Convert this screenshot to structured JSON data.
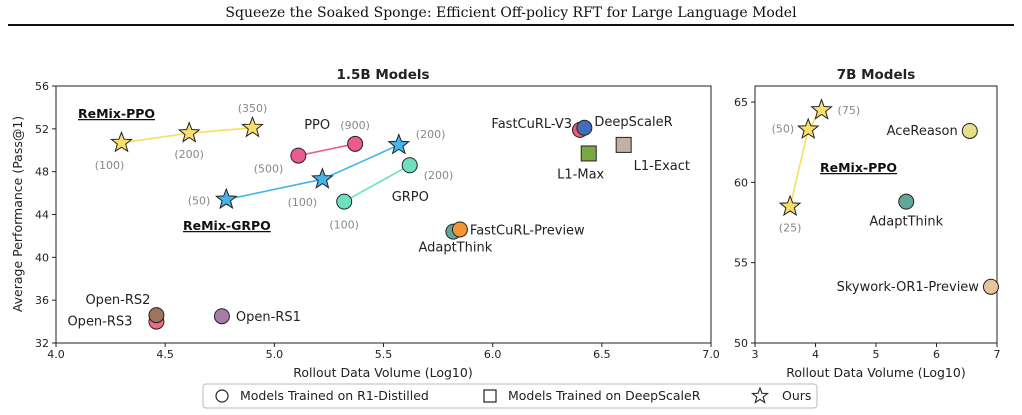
{
  "header": {
    "title": "Squeeze the Soaked Sponge: Efficient Off-policy RFT for Large Language Model"
  },
  "chart_data": [
    {
      "type": "scatter",
      "title": "1.5B Models",
      "xlabel": "Rollout Data Volume (Log10)",
      "ylabel": "Average Performance (Pass@1)",
      "xlim": [
        4.0,
        7.0
      ],
      "ylim": [
        32,
        56
      ],
      "xticks": [
        "4.0",
        "4.5",
        "5.0",
        "5.5",
        "6.0",
        "6.5",
        "7.0"
      ],
      "yticks": [
        "32",
        "36",
        "40",
        "44",
        "48",
        "52",
        "56"
      ],
      "grid": false,
      "points": [
        {
          "label": "Open-RS3",
          "x": 4.46,
          "y": 34.0,
          "marker": "circle",
          "color": "#ee6b8a"
        },
        {
          "label": "Open-RS2",
          "x": 4.46,
          "y": 34.6,
          "marker": "circle",
          "color": "#a0745a"
        },
        {
          "label": "Open-RS1",
          "x": 4.76,
          "y": 34.5,
          "marker": "circle",
          "color": "#a87aa8"
        },
        {
          "label": "",
          "x": 5.11,
          "y": 49.5,
          "marker": "circle",
          "color": "#ec5b90",
          "annotation": "(500)"
        },
        {
          "label": "PPO",
          "x": 5.37,
          "y": 50.6,
          "marker": "circle",
          "color": "#ec5b90",
          "annotation": "(900)"
        },
        {
          "label": "",
          "x": 5.32,
          "y": 45.2,
          "marker": "circle",
          "color": "#6fe0bf",
          "annotation": "(100)"
        },
        {
          "label": "GRPO",
          "x": 5.62,
          "y": 48.6,
          "marker": "circle",
          "color": "#6fe0bf",
          "annotation": "(200)"
        },
        {
          "label": "AdaptThink",
          "x": 5.82,
          "y": 42.4,
          "marker": "circle",
          "color": "#62a898"
        },
        {
          "label": "FastCuRL-Preview",
          "x": 5.85,
          "y": 42.6,
          "marker": "circle",
          "color": "#f39534"
        },
        {
          "label": "FastCuRL-V3",
          "x": 6.4,
          "y": 51.9,
          "marker": "circle",
          "color": "#ee5a6e"
        },
        {
          "label": "DeepScaleR",
          "x": 6.42,
          "y": 52.1,
          "marker": "circle",
          "color": "#3f6fba"
        },
        {
          "label": "L1-Max",
          "x": 6.44,
          "y": 49.7,
          "marker": "square",
          "color": "#79a943"
        },
        {
          "label": "L1-Exact",
          "x": 6.6,
          "y": 50.5,
          "marker": "square",
          "color": "#c2b0a8"
        },
        {
          "label": "",
          "x": 4.3,
          "y": 50.7,
          "marker": "star",
          "color": "#f9de6a",
          "annotation": "(100)"
        },
        {
          "label": "",
          "x": 4.61,
          "y": 51.6,
          "marker": "star",
          "color": "#f9de6a",
          "annotation": "(200)"
        },
        {
          "label": "",
          "x": 4.9,
          "y": 52.1,
          "marker": "star",
          "color": "#f9de6a",
          "annotation": "(350)"
        },
        {
          "label": "",
          "x": 4.78,
          "y": 45.4,
          "marker": "star",
          "color": "#45b4ea",
          "annotation": "(50)"
        },
        {
          "label": "",
          "x": 5.22,
          "y": 47.3,
          "marker": "star",
          "color": "#45b4ea",
          "annotation": "(100)"
        },
        {
          "label": "",
          "x": 5.57,
          "y": 50.5,
          "marker": "star",
          "color": "#45b4ea",
          "annotation": "(200)"
        }
      ],
      "connections": [
        {
          "color": "#f7df5e",
          "points": [
            [
              4.3,
              50.7
            ],
            [
              4.61,
              51.6
            ],
            [
              4.9,
              52.1
            ]
          ]
        },
        {
          "color": "#45b4ea",
          "points": [
            [
              4.78,
              45.4
            ],
            [
              5.22,
              47.3
            ],
            [
              5.57,
              50.5
            ]
          ]
        },
        {
          "color": "#ec5b90",
          "points": [
            [
              5.11,
              49.5
            ],
            [
              5.37,
              50.6
            ]
          ]
        },
        {
          "color": "#6fe0bf",
          "points": [
            [
              5.32,
              45.2
            ],
            [
              5.62,
              48.6
            ]
          ]
        }
      ],
      "method_labels": [
        "ReMix-PPO",
        "ReMix-GRPO"
      ]
    },
    {
      "type": "scatter",
      "title": "7B Models",
      "xlabel": "Rollout Data Volume (Log10)",
      "ylabel": "",
      "xlim": [
        3,
        7
      ],
      "ylim": [
        50,
        66
      ],
      "xticks": [
        "3",
        "4",
        "5",
        "6",
        "7"
      ],
      "yticks": [
        "50",
        "55",
        "60",
        "65"
      ],
      "grid": false,
      "points": [
        {
          "label": "",
          "x": 3.58,
          "y": 58.5,
          "marker": "star",
          "color": "#f9de6a",
          "annotation": "(25)"
        },
        {
          "label": "",
          "x": 3.88,
          "y": 63.3,
          "marker": "star",
          "color": "#f9de6a",
          "annotation": "(50)"
        },
        {
          "label": "",
          "x": 4.1,
          "y": 64.5,
          "marker": "star",
          "color": "#f9de6a",
          "annotation": "(75)"
        },
        {
          "label": "AceReason",
          "x": 6.55,
          "y": 63.2,
          "marker": "circle",
          "color": "#e6e08a"
        },
        {
          "label": "AdaptThink",
          "x": 5.5,
          "y": 58.8,
          "marker": "circle",
          "color": "#62a898"
        },
        {
          "label": "Skywork-OR1-Preview",
          "x": 6.9,
          "y": 53.5,
          "marker": "circle",
          "color": "#e5c59a"
        }
      ],
      "connections": [
        {
          "color": "#f7df5e",
          "points": [
            [
              3.58,
              58.5
            ],
            [
              3.88,
              63.3
            ],
            [
              4.1,
              64.5
            ]
          ]
        }
      ],
      "method_labels": [
        "ReMix-PPO"
      ]
    }
  ],
  "legend": [
    {
      "marker": "circle",
      "label": "Models Trained on R1-Distilled"
    },
    {
      "marker": "square",
      "label": "Models Trained on DeepScaleR"
    },
    {
      "marker": "star",
      "label": "Ours"
    }
  ]
}
